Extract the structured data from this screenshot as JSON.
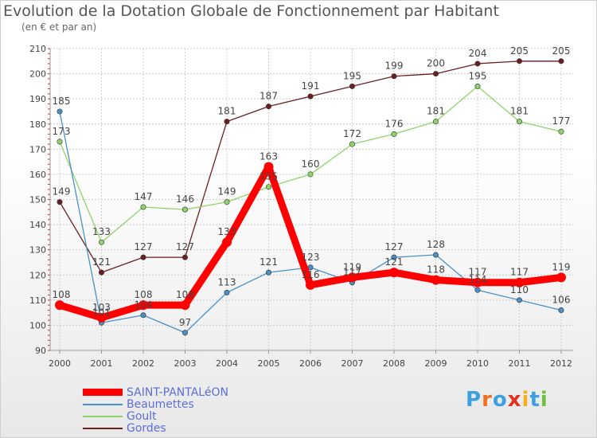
{
  "chart_data": {
    "type": "line",
    "title": "Evolution de la Dotation Globale de Fonctionnement par Habitant",
    "subtitle": "(en € et par an)",
    "xlabel": "",
    "ylabel": "",
    "categories": [
      "2000",
      "2001",
      "2002",
      "2003",
      "2004",
      "2005",
      "2006",
      "2007",
      "2008",
      "2009",
      "2010",
      "2011",
      "2012"
    ],
    "ylim": [
      90,
      210
    ],
    "yticks": [
      90,
      100,
      110,
      120,
      130,
      140,
      150,
      160,
      170,
      180,
      190,
      200,
      210
    ],
    "grid": true,
    "legend_position": "bottom-left",
    "series": [
      {
        "name": "Gordes",
        "color": "#6b1f1f",
        "values": [
          149,
          121,
          127,
          127,
          181,
          187,
          191,
          195,
          199,
          200,
          204,
          205,
          205
        ]
      },
      {
        "name": "Goult",
        "color": "#8ed46a",
        "values": [
          173,
          133,
          147,
          146,
          149,
          155,
          160,
          172,
          176,
          181,
          195,
          181,
          177
        ]
      },
      {
        "name": "Beaumettes",
        "color": "#4a90c8",
        "values": [
          185,
          101,
          104,
          97,
          113,
          121,
          123,
          117,
          127,
          128,
          114,
          110,
          106
        ]
      },
      {
        "name": "SAINT-PANTALéON",
        "color": "#ff0000",
        "values": [
          108,
          103,
          108,
          108,
          133,
          163,
          116,
          119,
          121,
          118,
          117,
          117,
          119
        ]
      }
    ],
    "value_labels": {
      "Gordes": [
        "149",
        "121",
        "127",
        "127",
        "181",
        "187",
        "191",
        "195",
        "199",
        "200",
        "204",
        "205",
        "205"
      ],
      "Goult": [
        "173",
        "133",
        "147",
        "146",
        "149",
        "155",
        "160",
        "172",
        "176",
        "181",
        "195",
        "181",
        "177"
      ],
      "Beaumettes": [
        "185",
        "101",
        "104",
        "97",
        "113",
        "121",
        "123",
        "117",
        "127",
        "128",
        "114",
        "110",
        "106"
      ],
      "SAINT-PANTALéON": [
        "108",
        "103",
        "108",
        "108",
        "133",
        "163",
        "116",
        "119",
        "121",
        "118",
        "117",
        "117",
        "119"
      ]
    }
  },
  "legend": [
    {
      "label": "SAINT-PANTALéON",
      "color": "#ff0000"
    },
    {
      "label": "Beaumettes",
      "color": "#4a90c8"
    },
    {
      "label": "Goult",
      "color": "#8ed46a"
    },
    {
      "label": "Gordes",
      "color": "#6b1f1f"
    }
  ],
  "logo": {
    "letters": [
      "P",
      "r",
      "o",
      "x",
      "i",
      "t",
      "i"
    ],
    "colors": [
      "#3fa0e0",
      "#f07020",
      "#3fa0e0",
      "#e03020",
      "#f0b020",
      "#3fa0e0",
      "#70c040"
    ]
  }
}
